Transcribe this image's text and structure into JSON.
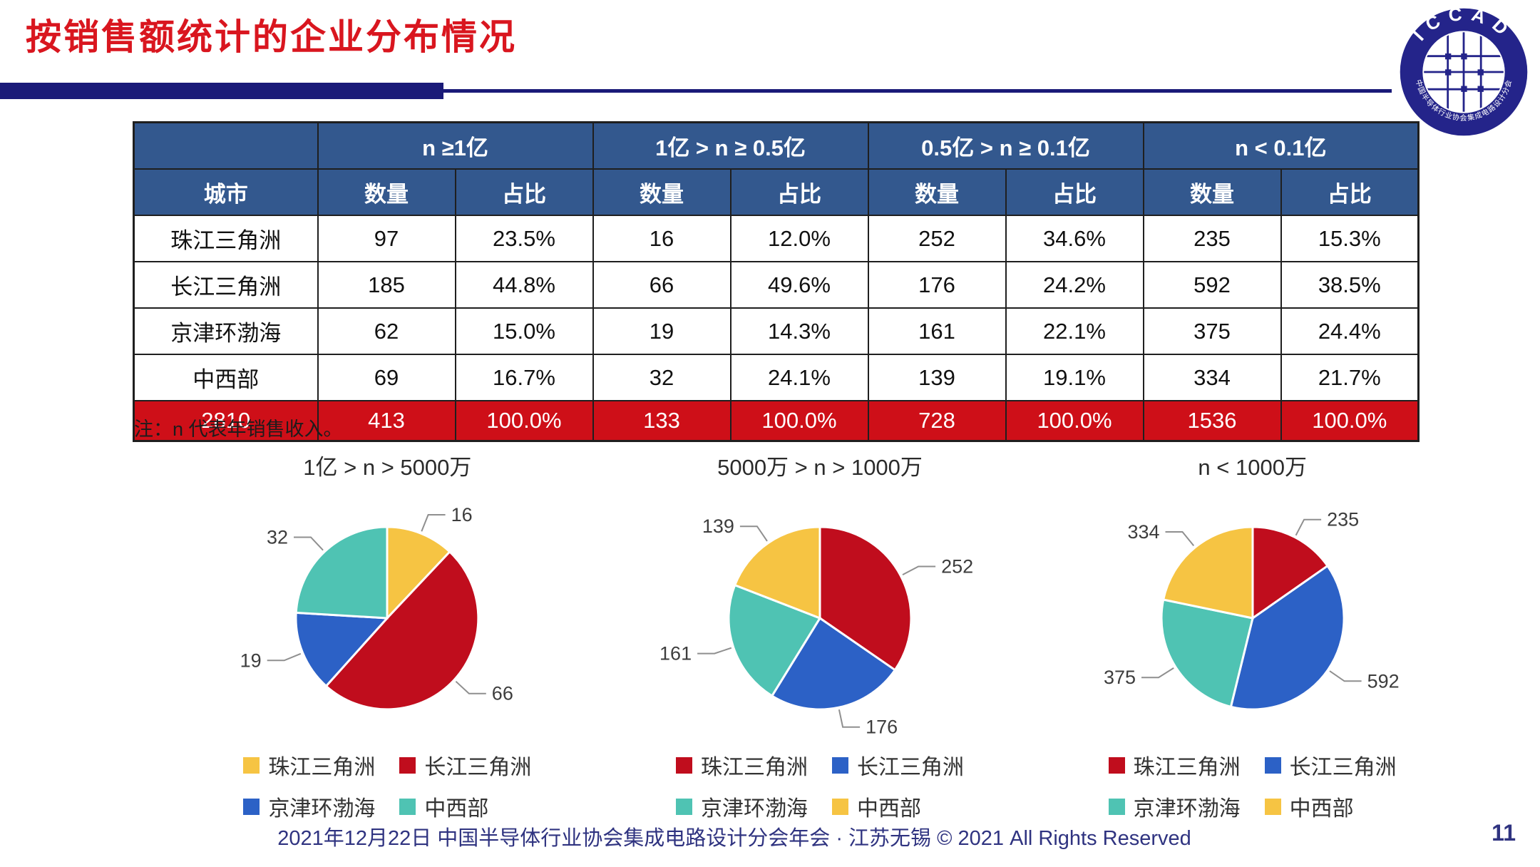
{
  "title": "按销售额统计的企业分布情况",
  "logo": {
    "text": "ICCAD",
    "ring_text": "中国半导体行业协会集成电路设计分会"
  },
  "table": {
    "group_headers": [
      "n ≥1亿",
      "1亿 > n ≥ 0.5亿",
      "0.5亿 > n ≥ 0.1亿",
      "n < 0.1亿"
    ],
    "sub_headers": {
      "city": "城市",
      "count": "数量",
      "share": "占比"
    },
    "rows": [
      {
        "city": "珠江三角洲",
        "cells": [
          "97",
          "23.5%",
          "16",
          "12.0%",
          "252",
          "34.6%",
          "235",
          "15.3%"
        ]
      },
      {
        "city": "长江三角洲",
        "cells": [
          "185",
          "44.8%",
          "66",
          "49.6%",
          "176",
          "24.2%",
          "592",
          "38.5%"
        ]
      },
      {
        "city": "京津环渤海",
        "cells": [
          "62",
          "15.0%",
          "19",
          "14.3%",
          "161",
          "22.1%",
          "375",
          "24.4%"
        ]
      },
      {
        "city": "中西部",
        "cells": [
          "69",
          "16.7%",
          "32",
          "24.1%",
          "139",
          "19.1%",
          "334",
          "21.7%"
        ]
      }
    ],
    "total_row": [
      "2810",
      "413",
      "100.0%",
      "133",
      "100.0%",
      "728",
      "100.0%",
      "1536",
      "100.0%"
    ]
  },
  "note": "注：n 代表年销售收入。",
  "chart_data": [
    {
      "type": "pie",
      "title": "1亿 > n > 5000万",
      "categories": [
        "珠江三角洲",
        "长江三角洲",
        "京津环渤海",
        "中西部"
      ],
      "values": [
        16,
        66,
        19,
        32
      ],
      "colors": [
        "#F6C443",
        "#C00D1D",
        "#2C61C6",
        "#4FC3B3"
      ],
      "legend_position": "bottom",
      "start_angle_deg": 0,
      "direction": "clockwise"
    },
    {
      "type": "pie",
      "title": "5000万 > n > 1000万",
      "categories": [
        "珠江三角洲",
        "长江三角洲",
        "京津环渤海",
        "中西部"
      ],
      "values": [
        252,
        176,
        161,
        139
      ],
      "colors": [
        "#C00D1D",
        "#2C61C6",
        "#4FC3B3",
        "#F6C443"
      ],
      "legend_position": "bottom",
      "start_angle_deg": 0,
      "direction": "clockwise"
    },
    {
      "type": "pie",
      "title": "n < 1000万",
      "categories": [
        "珠江三角洲",
        "长江三角洲",
        "京津环渤海",
        "中西部"
      ],
      "values": [
        235,
        592,
        375,
        334
      ],
      "colors": [
        "#C00D1D",
        "#2C61C6",
        "#4FC3B3",
        "#F6C443"
      ],
      "legend_position": "bottom",
      "start_angle_deg": 0,
      "direction": "clockwise"
    },
    {
      "type": "table",
      "title": "按销售额统计的企业分布情况",
      "columns": [
        "城市",
        "n ≥1亿 数量",
        "n ≥1亿 占比",
        "1亿 > n ≥ 0.5亿 数量",
        "1亿 > n ≥ 0.5亿 占比",
        "0.5亿 > n ≥ 0.1亿 数量",
        "0.5亿 > n ≥ 0.1亿 占比",
        "n < 0.1亿 数量",
        "n < 0.1亿 占比"
      ],
      "rows": [
        [
          "珠江三角洲",
          97,
          "23.5%",
          16,
          "12.0%",
          252,
          "34.6%",
          235,
          "15.3%"
        ],
        [
          "长江三角洲",
          185,
          "44.8%",
          66,
          "49.6%",
          176,
          "24.2%",
          592,
          "38.5%"
        ],
        [
          "京津环渤海",
          62,
          "15.0%",
          19,
          "14.3%",
          161,
          "22.1%",
          375,
          "24.4%"
        ],
        [
          "中西部",
          69,
          "16.7%",
          32,
          "24.1%",
          139,
          "19.1%",
          334,
          "21.7%"
        ],
        [
          "2810",
          413,
          "100.0%",
          133,
          "100.0%",
          728,
          "100.0%",
          1536,
          "100.0%"
        ]
      ]
    }
  ],
  "footer": {
    "text": "2021年12月22日 中国半导体行业协会集成电路设计分会年会 · 江苏无锡 © 2021 All Rights Reserved",
    "page": "11"
  },
  "colors": {
    "title_red": "#D9161F",
    "bar_navy": "#1A1A78",
    "header_blue": "#33588E",
    "total_red": "#CE0F18",
    "footer_navy": "#2F3380",
    "pie_yellow": "#F6C443",
    "pie_red": "#C00D1D",
    "pie_blue": "#2C61C6",
    "pie_teal": "#4FC3B3",
    "logo_navy": "#24248A"
  }
}
